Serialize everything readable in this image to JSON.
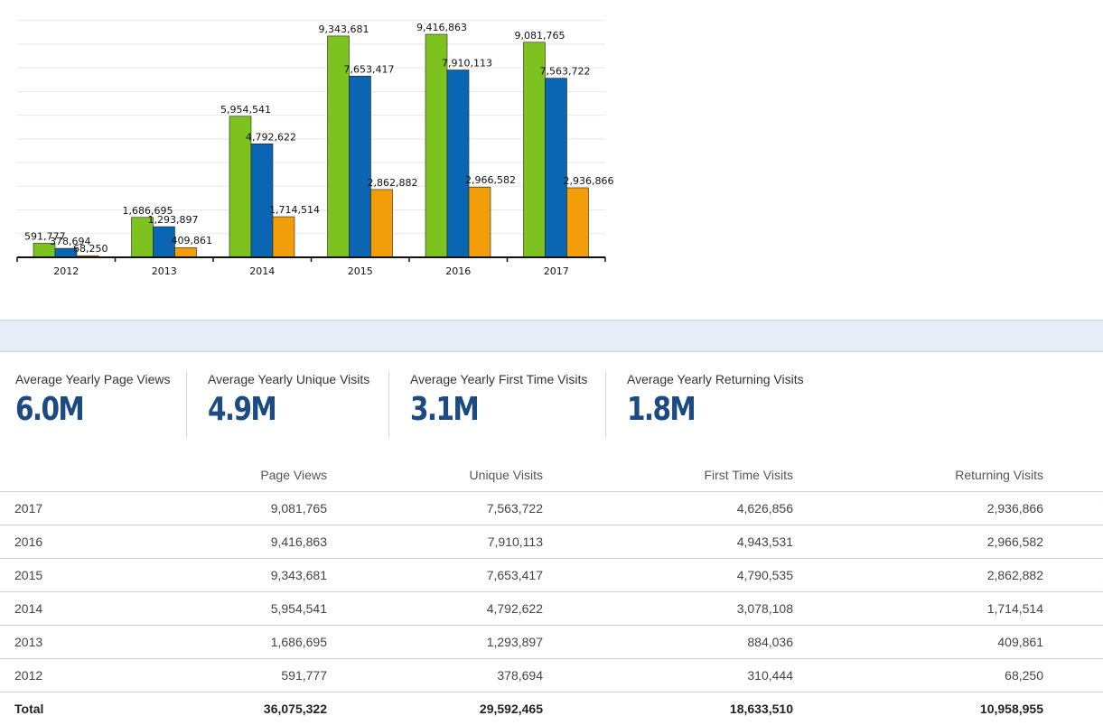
{
  "chart_data": {
    "type": "bar",
    "categories": [
      "2012",
      "2013",
      "2014",
      "2015",
      "2016",
      "2017"
    ],
    "series": [
      {
        "color": "#7dc21e",
        "values": [
          591777,
          1686695,
          5954541,
          9343681,
          9416863,
          9081765
        ],
        "labels": [
          "591,777",
          "1,686,695",
          "5,954,541",
          "9,343,681",
          "9,416,863",
          "9,081,765"
        ]
      },
      {
        "color": "#0a66b3",
        "values": [
          378694,
          1293897,
          4792622,
          7653417,
          7910113,
          7563722
        ],
        "labels": [
          "378,694",
          "1,293,897",
          "4,792,622",
          "7,653,417",
          "7,910,113",
          "7,563,722"
        ]
      },
      {
        "color": "#f29d0a",
        "values": [
          68250,
          409861,
          1714514,
          2862882,
          2966582,
          2936866
        ],
        "labels": [
          "68,250",
          "409,861",
          "1,714,514",
          "2,862,882",
          "2,966,582",
          "2,936,866"
        ]
      }
    ],
    "ylim": [
      0,
      10000000
    ],
    "grid": true,
    "legend": "none"
  },
  "stats": [
    {
      "label": "Average Yearly Page Views",
      "value": "6.0M"
    },
    {
      "label": "Average Yearly Unique Visits",
      "value": "4.9M"
    },
    {
      "label": "Average Yearly First Time Visits",
      "value": "3.1M"
    },
    {
      "label": "Average Yearly Returning Visits",
      "value": "1.8M"
    }
  ],
  "table": {
    "headers": [
      "",
      "Page Views",
      "Unique Visits",
      "First Time Visits",
      "Returning Visits"
    ],
    "rows": [
      [
        "2017",
        "9,081,765",
        "7,563,722",
        "4,626,856",
        "2,936,866"
      ],
      [
        "2016",
        "9,416,863",
        "7,910,113",
        "4,943,531",
        "2,966,582"
      ],
      [
        "2015",
        "9,343,681",
        "7,653,417",
        "4,790,535",
        "2,862,882"
      ],
      [
        "2014",
        "5,954,541",
        "4,792,622",
        "3,078,108",
        "1,714,514"
      ],
      [
        "2013",
        "1,686,695",
        "1,293,897",
        "884,036",
        "409,861"
      ],
      [
        "2012",
        "591,777",
        "378,694",
        "310,444",
        "68,250"
      ]
    ],
    "total": [
      "Total",
      "36,075,322",
      "29,592,465",
      "18,633,510",
      "10,958,955"
    ]
  }
}
